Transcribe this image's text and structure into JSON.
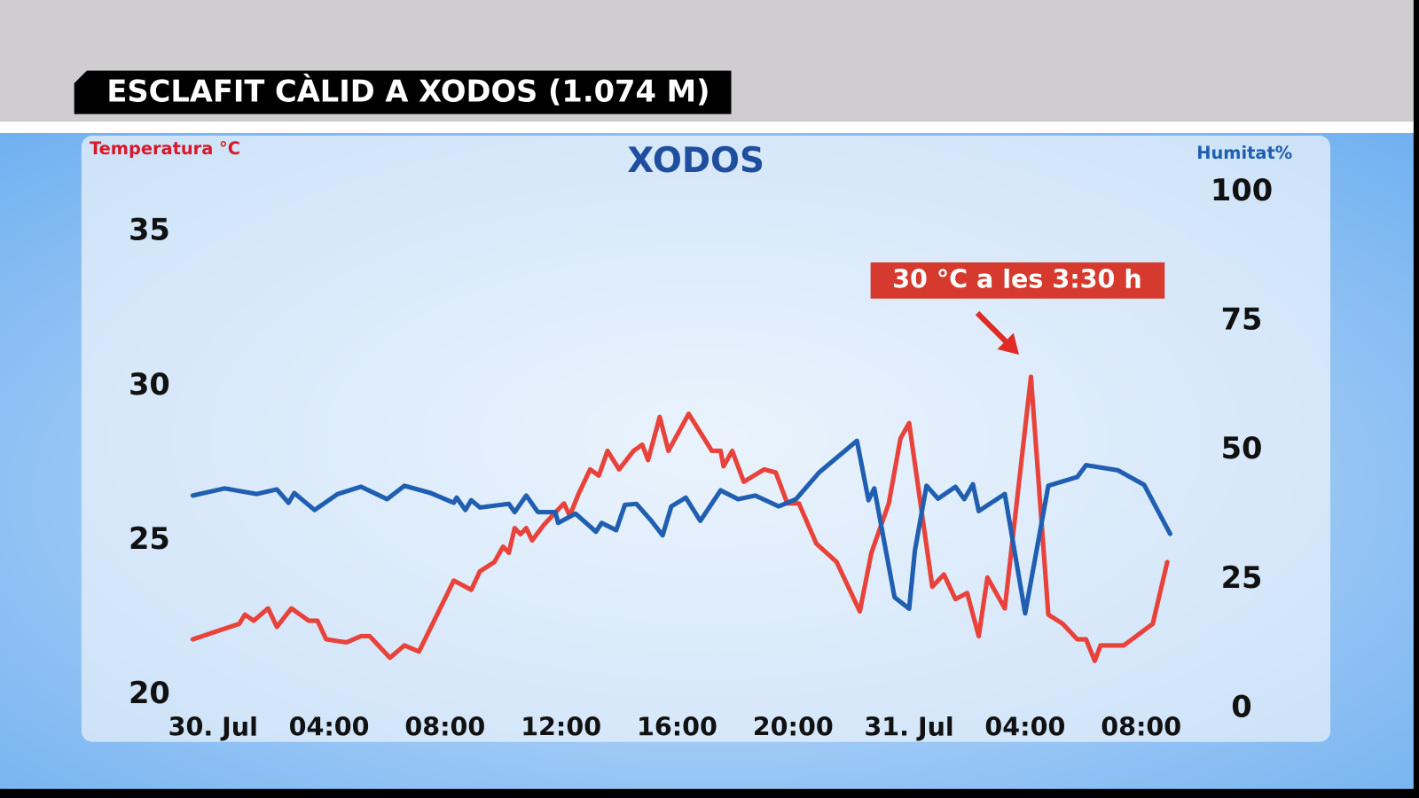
{
  "header": {
    "title": "ESCLAFIT CÀLID A XODOS (1.074 M)"
  },
  "chart_data": {
    "type": "line",
    "title": "XODOS",
    "y_label": "Temperatura °C",
    "y2_label": "Humitat%",
    "annotation": "30 °C a les 3:30 h",
    "xlim": [
      -0.7,
      33
    ],
    "xticks": [
      {
        "value": 0,
        "label": "30. Jul"
      },
      {
        "value": 4,
        "label": "04:00"
      },
      {
        "value": 8,
        "label": "08:00"
      },
      {
        "value": 12,
        "label": "12:00"
      },
      {
        "value": 16,
        "label": "16:00"
      },
      {
        "value": 20,
        "label": "20:00"
      },
      {
        "value": 24,
        "label": "31. Jul"
      },
      {
        "value": 28,
        "label": "04:00"
      },
      {
        "value": 32,
        "label": "08:00"
      }
    ],
    "ylim": [
      20,
      35
    ],
    "yticks": [
      20,
      25,
      30,
      35
    ],
    "y2lim": [
      0,
      100
    ],
    "y2ticks": [
      0,
      25,
      50,
      75,
      100
    ],
    "grid": false,
    "series": [
      {
        "color": "#e8423a",
        "axis": "y",
        "x": [
          -0.7,
          0.9,
          1.1,
          1.4,
          1.9,
          2.2,
          2.7,
          3.3,
          3.6,
          3.9,
          4.6,
          5.1,
          5.4,
          6.1,
          6.6,
          7.1,
          8.3,
          8.9,
          9.2,
          9.7,
          10.0,
          10.2,
          10.4,
          10.6,
          10.8,
          11.0,
          11.4,
          11.8,
          12.1,
          12.3,
          12.6,
          13.0,
          13.3,
          13.6,
          14.0,
          14.5,
          14.8,
          15.0,
          15.4,
          15.7,
          16.4,
          17.2,
          17.5,
          17.6,
          17.9,
          18.3,
          19.0,
          19.4,
          19.8,
          20.2,
          20.8,
          21.5,
          22.3,
          22.7,
          23.3,
          23.7,
          24.0,
          24.8,
          25.2,
          25.6,
          26.0,
          26.4,
          26.7,
          27.3,
          28.2,
          28.8,
          29.3,
          29.8,
          30.1,
          30.4,
          30.6,
          31.4,
          32.4,
          32.6,
          32.9
        ],
        "values": [
          21.8,
          22.3,
          22.6,
          22.4,
          22.8,
          22.2,
          22.8,
          22.4,
          22.4,
          21.8,
          21.7,
          21.9,
          21.9,
          21.2,
          21.6,
          21.4,
          23.7,
          23.4,
          24.0,
          24.3,
          24.8,
          24.6,
          25.4,
          25.2,
          25.4,
          25.0,
          25.5,
          25.9,
          26.2,
          25.8,
          26.5,
          27.3,
          27.1,
          27.9,
          27.3,
          27.9,
          28.1,
          27.6,
          29.0,
          27.9,
          29.1,
          27.9,
          27.9,
          27.4,
          27.9,
          26.9,
          27.3,
          27.2,
          26.2,
          26.2,
          24.9,
          24.3,
          22.7,
          24.6,
          26.2,
          28.3,
          28.8,
          23.5,
          23.9,
          23.1,
          23.3,
          21.9,
          23.8,
          22.8,
          30.3,
          22.6,
          22.3,
          21.8,
          21.8,
          21.1,
          21.6,
          21.6,
          22.3,
          23.1,
          24.3
        ]
      },
      {
        "color": "#1f5eb0",
        "axis": "y2",
        "x": [
          -0.7,
          0.4,
          1.5,
          2.2,
          2.6,
          2.8,
          3.5,
          4.3,
          5.1,
          6.0,
          6.6,
          7.5,
          8.3,
          8.4,
          8.7,
          8.9,
          9.2,
          10.2,
          10.4,
          10.8,
          11.2,
          11.8,
          11.9,
          12.5,
          13.2,
          13.4,
          13.9,
          14.2,
          14.6,
          15.1,
          15.5,
          15.8,
          16.3,
          16.8,
          17.5,
          18.1,
          18.7,
          19.5,
          20.1,
          20.9,
          22.2,
          22.6,
          22.8,
          23.5,
          24.0,
          24.2,
          24.6,
          25.0,
          25.6,
          25.9,
          26.2,
          26.4,
          27.3,
          28.0,
          28.8,
          29.8,
          30.1,
          31.2,
          32.1,
          33.0
        ],
        "values": [
          41.2,
          42.6,
          41.5,
          42.4,
          39.8,
          41.7,
          38.4,
          41.5,
          42.9,
          40.5,
          43.1,
          41.7,
          39.8,
          40.8,
          38.4,
          40.3,
          38.9,
          39.6,
          38.0,
          41.2,
          38.0,
          38.0,
          35.9,
          37.7,
          34.2,
          35.9,
          34.5,
          39.4,
          39.6,
          36.4,
          33.5,
          39.1,
          40.8,
          36.3,
          42.2,
          40.5,
          41.2,
          39.1,
          40.5,
          45.7,
          51.8,
          40.3,
          42.6,
          21.5,
          19.3,
          30.6,
          43.1,
          40.6,
          42.9,
          40.5,
          43.4,
          38.2,
          41.5,
          18.4,
          43.1,
          44.8,
          47.1,
          46.1,
          43.3,
          33.8
        ]
      }
    ]
  }
}
